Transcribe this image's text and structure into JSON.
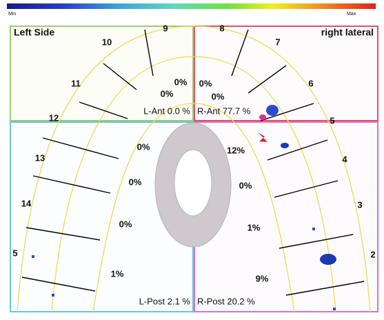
{
  "scale": {
    "min": "Min",
    "max": "Max"
  },
  "headers": {
    "left": "Left Side",
    "right": "right lateral"
  },
  "teeth": {
    "left": [
      "9",
      "10",
      "11",
      "12",
      "13",
      "14",
      "5"
    ],
    "right": [
      "8",
      "7",
      "6",
      "5",
      "4",
      "3",
      "2"
    ]
  },
  "percentages": {
    "left_anterior": [
      "0%",
      "0%"
    ],
    "right_anterior": [
      "0%",
      "0%"
    ],
    "left_posterior": [
      "0%",
      "0%",
      "0%",
      "1%"
    ],
    "right_posterior": [
      "12%",
      "0%",
      "1%",
      "9%"
    ]
  },
  "quadrant_totals": {
    "left_anterior": "L-Ant 0.0 %",
    "right_anterior": "R-Ant 77.7 %",
    "left_posterior": "L-Post 2.1 %",
    "right_posterior": "R-Post 20.2 %"
  }
}
